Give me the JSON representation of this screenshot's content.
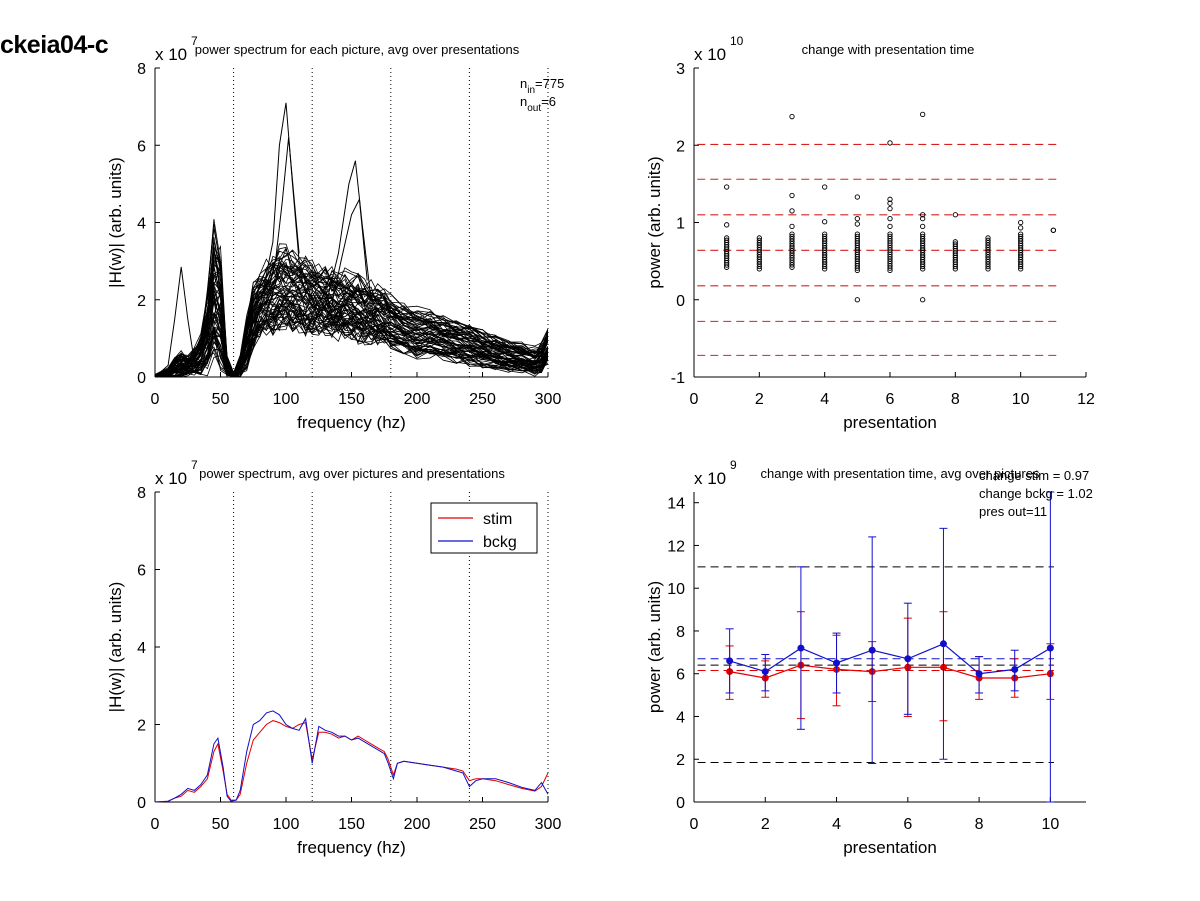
{
  "figure": {
    "title": "ckeia04-c"
  },
  "chart_data": [
    {
      "id": "p1",
      "type": "line",
      "title": "power spectrum for each picture, avg over presentations",
      "xlabel": "frequency (hz)",
      "ylabel": "|H(w)| (arb. units)",
      "xlim": [
        0,
        300
      ],
      "ylim": [
        0,
        8
      ],
      "xticks": [
        0,
        50,
        100,
        150,
        200,
        250,
        300
      ],
      "yticks": [
        0,
        2,
        4,
        6,
        8
      ],
      "yscale_note": {
        "base": "x 10",
        "exp": "7"
      },
      "vlines": [
        60,
        120,
        180,
        240,
        300
      ],
      "annotation": {
        "n_in_label": "n",
        "n_in_sub": "in",
        "n_in_value": "=775",
        "n_out_label": "n",
        "n_out_sub": "out",
        "n_out_value": "=6"
      },
      "envelope": {
        "x": [
          0,
          10,
          15,
          20,
          25,
          30,
          35,
          40,
          45,
          50,
          55,
          60,
          65,
          70,
          75,
          80,
          85,
          90,
          95,
          100,
          105,
          110,
          115,
          120,
          125,
          130,
          135,
          140,
          145,
          150,
          155,
          160,
          165,
          170,
          175,
          180,
          190,
          200,
          210,
          220,
          230,
          240,
          250,
          260,
          270,
          280,
          290,
          295,
          300
        ],
        "mean": [
          0,
          0.05,
          0.1,
          0.15,
          0.2,
          0.3,
          0.4,
          0.6,
          1.4,
          1.0,
          0.2,
          0.05,
          0.2,
          0.7,
          1.3,
          1.7,
          1.8,
          1.9,
          2.0,
          2.0,
          1.95,
          1.9,
          1.85,
          1.8,
          1.8,
          1.75,
          1.7,
          1.7,
          1.65,
          1.6,
          1.6,
          1.55,
          1.5,
          1.45,
          1.4,
          1.3,
          1.15,
          1.05,
          1.0,
          0.9,
          0.8,
          0.7,
          0.6,
          0.5,
          0.45,
          0.35,
          0.3,
          0.4,
          0.9
        ],
        "lo": [
          0,
          0,
          0.03,
          0.05,
          0.08,
          0.1,
          0.15,
          0.2,
          0.5,
          0.4,
          0.05,
          0,
          0.05,
          0.3,
          0.8,
          1.1,
          1.2,
          1.2,
          1.3,
          1.3,
          1.3,
          1.3,
          1.2,
          1.2,
          1.2,
          1.2,
          1.1,
          1.1,
          1.1,
          1.1,
          1.0,
          1.0,
          1.0,
          0.9,
          0.9,
          0.8,
          0.7,
          0.6,
          0.6,
          0.5,
          0.4,
          0.35,
          0.3,
          0.25,
          0.2,
          0.15,
          0.1,
          0.15,
          0.4
        ],
        "hi": [
          0.05,
          0.2,
          0.5,
          0.6,
          0.5,
          0.7,
          1.0,
          2.0,
          3.6,
          3.2,
          0.5,
          0.1,
          0.5,
          1.5,
          2.3,
          2.6,
          2.8,
          3.0,
          3.2,
          3.2,
          3.1,
          3.0,
          2.9,
          2.9,
          2.8,
          2.7,
          2.7,
          2.6,
          2.6,
          2.5,
          2.5,
          2.4,
          2.3,
          2.2,
          2.1,
          2.0,
          1.8,
          1.7,
          1.6,
          1.5,
          1.4,
          1.3,
          1.1,
          1.0,
          0.9,
          0.8,
          0.7,
          0.8,
          1.2
        ]
      },
      "outliers": [
        {
          "x": [
            0,
            10,
            15,
            20,
            25,
            30,
            40
          ],
          "y": [
            0,
            0.3,
            1.5,
            2.85,
            1.5,
            0.4,
            0.3
          ]
        },
        {
          "x": [
            80,
            90,
            95,
            100,
            105,
            110,
            120
          ],
          "y": [
            1.8,
            3.5,
            6.0,
            7.1,
            5.0,
            3.0,
            2.0
          ]
        },
        {
          "x": [
            85,
            92,
            97,
            102,
            110
          ],
          "y": [
            2.0,
            3.0,
            4.5,
            6.2,
            3.2
          ]
        },
        {
          "x": [
            130,
            140,
            148,
            153,
            158,
            165
          ],
          "y": [
            1.8,
            3.2,
            5.0,
            5.6,
            4.0,
            2.0
          ]
        },
        {
          "x": [
            135,
            142,
            150,
            156,
            162
          ],
          "y": [
            1.9,
            3.0,
            4.2,
            4.6,
            2.5
          ]
        }
      ]
    },
    {
      "id": "p2",
      "type": "scatter",
      "title": "change with presentation time",
      "xlabel": "presentation",
      "ylabel": "power (arb. units)",
      "xlim": [
        0,
        12
      ],
      "ylim": [
        -1,
        3
      ],
      "xticks": [
        0,
        2,
        4,
        6,
        8,
        10,
        12
      ],
      "yticks": [
        -1,
        0,
        1,
        2,
        3
      ],
      "yscale_note": {
        "base": "x 10",
        "exp": "10"
      },
      "hlines": [
        2.01,
        1.56,
        1.1,
        0.64,
        0.18,
        -0.28,
        -0.72
      ],
      "hline_color": "#d62020",
      "columns": [
        {
          "x": 1,
          "lo": 0.42,
          "hi": 0.8,
          "extra": [
            0.97,
            1.46
          ]
        },
        {
          "x": 2,
          "lo": 0.4,
          "hi": 0.8,
          "extra": []
        },
        {
          "x": 3,
          "lo": 0.42,
          "hi": 0.85,
          "extra": [
            0.95,
            1.15,
            1.35,
            2.37
          ]
        },
        {
          "x": 4,
          "lo": 0.4,
          "hi": 0.85,
          "extra": [
            1.01,
            1.46
          ]
        },
        {
          "x": 5,
          "lo": 0.38,
          "hi": 0.85,
          "extra": [
            0.98,
            1.05,
            1.33,
            0.0
          ]
        },
        {
          "x": 6,
          "lo": 0.38,
          "hi": 0.85,
          "extra": [
            0.95,
            1.05,
            1.18,
            1.25,
            1.3,
            2.03
          ]
        },
        {
          "x": 7,
          "lo": 0.4,
          "hi": 0.85,
          "extra": [
            0.95,
            1.05,
            1.1,
            2.4,
            0.0
          ]
        },
        {
          "x": 8,
          "lo": 0.4,
          "hi": 0.75,
          "extra": [
            1.1
          ]
        },
        {
          "x": 9,
          "lo": 0.4,
          "hi": 0.8,
          "extra": []
        },
        {
          "x": 10,
          "lo": 0.4,
          "hi": 0.85,
          "extra": [
            0.93,
            1.0
          ]
        },
        {
          "x": 11,
          "lo": 0.9,
          "hi": 0.9,
          "extra": []
        }
      ]
    },
    {
      "id": "p3",
      "type": "line",
      "title": "power spectrum, avg over pictures and presentations",
      "xlabel": "frequency (hz)",
      "ylabel": "|H(w)| (arb. units)",
      "xlim": [
        0,
        300
      ],
      "ylim": [
        0,
        8
      ],
      "xticks": [
        0,
        50,
        100,
        150,
        200,
        250,
        300
      ],
      "yticks": [
        0,
        2,
        4,
        6,
        8
      ],
      "yscale_note": {
        "base": "x 10",
        "exp": "7"
      },
      "vlines": [
        60,
        120,
        180,
        240,
        300
      ],
      "legend": {
        "position": "top-right"
      },
      "series": [
        {
          "name": "stim",
          "color": "#e00000",
          "x": [
            0,
            10,
            15,
            20,
            25,
            30,
            35,
            40,
            45,
            48,
            52,
            55,
            58,
            62,
            65,
            70,
            75,
            80,
            85,
            90,
            95,
            100,
            105,
            110,
            115,
            120,
            125,
            130,
            135,
            140,
            145,
            150,
            155,
            160,
            165,
            170,
            175,
            178,
            182,
            185,
            190,
            200,
            210,
            220,
            230,
            235,
            240,
            245,
            250,
            260,
            270,
            280,
            290,
            295,
            300
          ],
          "y": [
            0,
            0.02,
            0.1,
            0.15,
            0.3,
            0.25,
            0.4,
            0.6,
            1.3,
            1.5,
            0.8,
            0.2,
            0.05,
            0.05,
            0.2,
            1.0,
            1.6,
            1.8,
            2.0,
            2.1,
            2.05,
            1.95,
            1.9,
            2.0,
            2.05,
            1.1,
            1.8,
            1.8,
            1.75,
            1.65,
            1.7,
            1.6,
            1.7,
            1.6,
            1.5,
            1.4,
            1.3,
            1.1,
            0.7,
            1.0,
            1.05,
            1.0,
            0.95,
            0.9,
            0.85,
            0.8,
            0.55,
            0.6,
            0.6,
            0.55,
            0.45,
            0.35,
            0.28,
            0.4,
            0.75
          ]
        },
        {
          "name": "bckg",
          "color": "#1010cc",
          "x": [
            0,
            10,
            15,
            20,
            25,
            30,
            35,
            40,
            45,
            48,
            52,
            55,
            58,
            62,
            65,
            70,
            75,
            80,
            85,
            90,
            95,
            100,
            105,
            110,
            115,
            120,
            125,
            130,
            135,
            140,
            145,
            150,
            155,
            160,
            165,
            170,
            175,
            178,
            182,
            185,
            190,
            200,
            210,
            220,
            230,
            235,
            240,
            245,
            250,
            260,
            270,
            280,
            290,
            295,
            300
          ],
          "y": [
            0,
            0.02,
            0.1,
            0.2,
            0.35,
            0.3,
            0.45,
            0.7,
            1.5,
            1.65,
            0.9,
            0.15,
            0.02,
            0.05,
            0.3,
            1.3,
            2.0,
            2.1,
            2.3,
            2.35,
            2.25,
            2.0,
            1.9,
            1.85,
            2.15,
            1.0,
            1.95,
            1.85,
            1.8,
            1.7,
            1.7,
            1.6,
            1.65,
            1.55,
            1.45,
            1.35,
            1.25,
            1.0,
            0.6,
            1.0,
            1.05,
            1.0,
            0.95,
            0.9,
            0.8,
            0.75,
            0.4,
            0.55,
            0.6,
            0.6,
            0.5,
            0.38,
            0.3,
            0.5,
            0.2
          ]
        }
      ]
    },
    {
      "id": "p4",
      "type": "line",
      "title": "change with presentation time, avg over pictures",
      "xlabel": "presentation",
      "ylabel": "power (arb. units)",
      "xlim": [
        0,
        11
      ],
      "ylim": [
        0,
        14.5
      ],
      "xticks": [
        0,
        2,
        4,
        6,
        8,
        10
      ],
      "yticks": [
        0,
        2,
        4,
        6,
        8,
        10,
        12,
        14
      ],
      "yscale_note": {
        "base": "x 10",
        "exp": "9"
      },
      "annotations": [
        "change stim = 0.97",
        "change bckg = 1.02",
        "pres out=11"
      ],
      "hlines_black": [
        11.0,
        1.85,
        6.4
      ],
      "hlines_blue": [
        6.7
      ],
      "hlines_red": [
        6.15
      ],
      "series": [
        {
          "name": "stim",
          "color": "#e00000",
          "x": [
            1,
            2,
            3,
            4,
            5,
            6,
            7,
            8,
            9,
            10
          ],
          "y": [
            6.1,
            5.8,
            6.4,
            6.2,
            6.1,
            6.3,
            6.3,
            5.8,
            5.8,
            6.0
          ],
          "err_lo": [
            4.8,
            4.9,
            3.9,
            4.5,
            4.7,
            4.0,
            3.8,
            4.8,
            4.9,
            4.8
          ],
          "err_hi": [
            7.3,
            6.6,
            8.9,
            7.8,
            7.5,
            8.6,
            8.9,
            6.8,
            6.7,
            7.4
          ]
        },
        {
          "name": "bckg",
          "color": "#1010cc",
          "x": [
            1,
            2,
            3,
            4,
            5,
            6,
            7,
            8,
            9,
            10
          ],
          "y": [
            6.6,
            6.1,
            7.2,
            6.5,
            7.1,
            6.7,
            7.4,
            6.0,
            6.2,
            7.2
          ],
          "err_lo": [
            5.1,
            5.2,
            3.4,
            5.1,
            1.8,
            4.1,
            2.0,
            5.1,
            5.2,
            0
          ],
          "err_hi": [
            8.1,
            6.9,
            11.0,
            7.9,
            12.4,
            9.3,
            12.8,
            6.8,
            7.1,
            14.5
          ]
        }
      ]
    }
  ]
}
